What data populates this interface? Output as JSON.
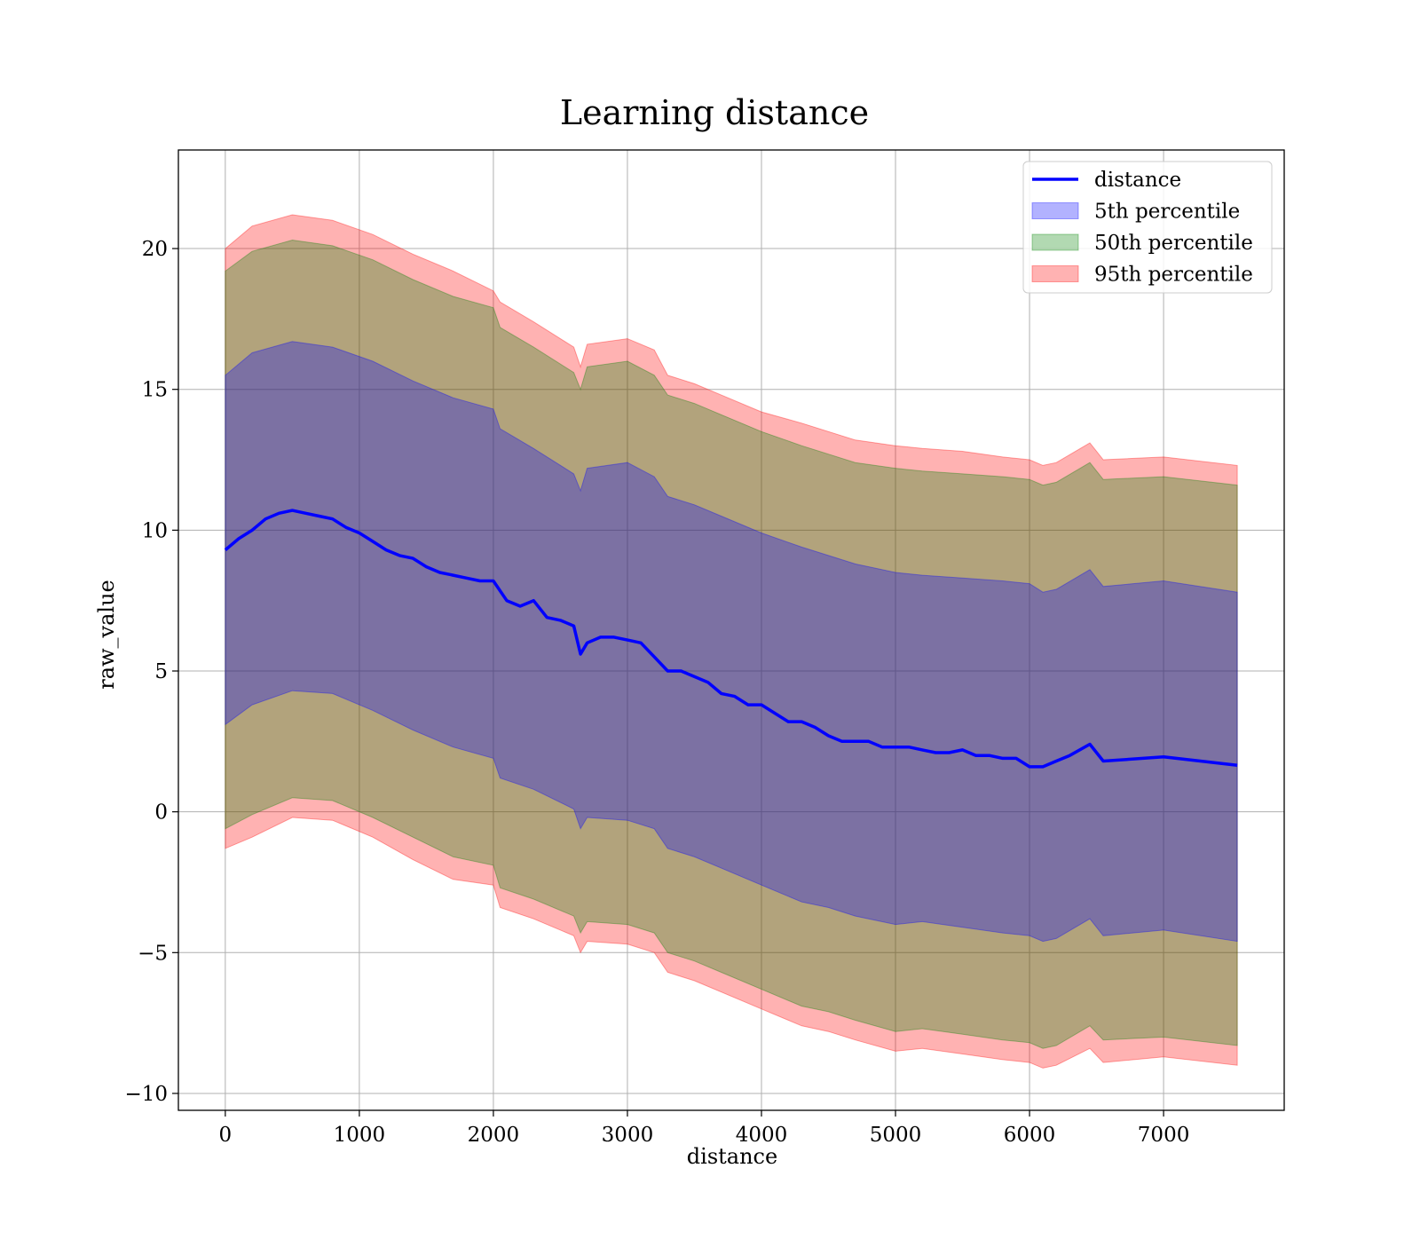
{
  "chart_data": {
    "type": "area",
    "title": "Learning distance",
    "xlabel": "distance",
    "ylabel": "raw_value",
    "xlim": [
      -350,
      7900
    ],
    "ylim": [
      -10.6,
      23.5
    ],
    "xticks": [
      0,
      1000,
      2000,
      3000,
      4000,
      5000,
      6000,
      7000
    ],
    "yticks": [
      -10,
      -5,
      0,
      5,
      10,
      15,
      20
    ],
    "xtick_labels": [
      "0",
      "1000",
      "2000",
      "3000",
      "4000",
      "5000",
      "6000",
      "7000"
    ],
    "ytick_labels": [
      "−10",
      "−5",
      "0",
      "5",
      "10",
      "15",
      "20"
    ],
    "grid": true,
    "legend_position": "top-right",
    "line": {
      "name": "distance",
      "color": "#0000ff",
      "x": [
        0,
        100,
        200,
        300,
        400,
        500,
        600,
        700,
        800,
        900,
        1000,
        1100,
        1200,
        1300,
        1400,
        1500,
        1600,
        1700,
        1800,
        1900,
        2000,
        2100,
        2200,
        2300,
        2400,
        2500,
        2600,
        2650,
        2700,
        2800,
        2900,
        3000,
        3100,
        3200,
        3300,
        3400,
        3500,
        3600,
        3700,
        3800,
        3900,
        4000,
        4100,
        4200,
        4300,
        4400,
        4500,
        4600,
        4700,
        4800,
        4900,
        5000,
        5100,
        5200,
        5300,
        5400,
        5500,
        5600,
        5700,
        5800,
        5900,
        6000,
        6100,
        6200,
        6300,
        6450,
        6550,
        7000,
        7550
      ],
      "y": [
        9.3,
        9.7,
        10.0,
        10.4,
        10.6,
        10.7,
        10.6,
        10.5,
        10.4,
        10.1,
        9.9,
        9.6,
        9.3,
        9.1,
        9.0,
        8.7,
        8.5,
        8.4,
        8.3,
        8.2,
        8.2,
        7.5,
        7.3,
        7.5,
        6.9,
        6.8,
        6.6,
        5.6,
        6.0,
        6.2,
        6.2,
        6.1,
        6.0,
        5.5,
        5.0,
        5.0,
        4.8,
        4.6,
        4.2,
        4.1,
        3.8,
        3.8,
        3.5,
        3.2,
        3.2,
        3.0,
        2.7,
        2.5,
        2.5,
        2.5,
        2.3,
        2.3,
        2.3,
        2.2,
        2.1,
        2.1,
        2.2,
        2.0,
        2.0,
        1.9,
        1.9,
        1.6,
        1.6,
        1.8,
        2.0,
        2.4,
        1.8,
        1.95,
        1.65
      ]
    },
    "bands": [
      {
        "name": "95th percentile",
        "color": "#ff0000",
        "opacity": 0.3,
        "x": [
          0,
          200,
          500,
          800,
          1100,
          1400,
          1700,
          2000,
          2050,
          2300,
          2600,
          2650,
          2700,
          3000,
          3200,
          3300,
          3500,
          3700,
          4000,
          4300,
          4500,
          4700,
          5000,
          5200,
          5500,
          5800,
          6000,
          6100,
          6200,
          6450,
          6550,
          7000,
          7550
        ],
        "upper": [
          20.0,
          20.8,
          21.2,
          21.0,
          20.5,
          19.8,
          19.2,
          18.5,
          18.1,
          17.4,
          16.5,
          15.8,
          16.6,
          16.8,
          16.4,
          15.5,
          15.2,
          14.8,
          14.2,
          13.8,
          13.5,
          13.2,
          13.0,
          12.9,
          12.8,
          12.6,
          12.5,
          12.3,
          12.4,
          13.1,
          12.5,
          12.6,
          12.3
        ],
        "lower": [
          -1.3,
          -0.9,
          -0.2,
          -0.3,
          -0.9,
          -1.7,
          -2.4,
          -2.6,
          -3.4,
          -3.8,
          -4.4,
          -5.0,
          -4.6,
          -4.7,
          -5.0,
          -5.7,
          -6.0,
          -6.4,
          -7.0,
          -7.6,
          -7.8,
          -8.1,
          -8.5,
          -8.4,
          -8.6,
          -8.8,
          -8.9,
          -9.1,
          -9.0,
          -8.4,
          -8.9,
          -8.7,
          -9.0
        ]
      },
      {
        "name": "50th percentile",
        "color": "#008000",
        "opacity": 0.3,
        "x": [
          0,
          200,
          500,
          800,
          1100,
          1400,
          1700,
          2000,
          2050,
          2300,
          2600,
          2650,
          2700,
          3000,
          3200,
          3300,
          3500,
          3700,
          4000,
          4300,
          4500,
          4700,
          5000,
          5200,
          5500,
          5800,
          6000,
          6100,
          6200,
          6450,
          6550,
          7000,
          7550
        ],
        "upper": [
          19.2,
          19.9,
          20.3,
          20.1,
          19.6,
          18.9,
          18.3,
          17.9,
          17.2,
          16.5,
          15.6,
          15.0,
          15.8,
          16.0,
          15.5,
          14.8,
          14.5,
          14.1,
          13.5,
          13.0,
          12.7,
          12.4,
          12.2,
          12.1,
          12.0,
          11.9,
          11.8,
          11.6,
          11.7,
          12.4,
          11.8,
          11.9,
          11.6
        ],
        "lower": [
          -0.6,
          -0.1,
          0.5,
          0.4,
          -0.2,
          -0.9,
          -1.6,
          -1.9,
          -2.7,
          -3.1,
          -3.7,
          -4.3,
          -3.9,
          -4.0,
          -4.3,
          -5.0,
          -5.3,
          -5.7,
          -6.3,
          -6.9,
          -7.1,
          -7.4,
          -7.8,
          -7.7,
          -7.9,
          -8.1,
          -8.2,
          -8.4,
          -8.3,
          -7.6,
          -8.1,
          -8.0,
          -8.3
        ]
      },
      {
        "name": "5th percentile",
        "color": "#0000ff",
        "opacity": 0.3,
        "x": [
          0,
          200,
          500,
          800,
          1100,
          1400,
          1700,
          2000,
          2050,
          2300,
          2600,
          2650,
          2700,
          3000,
          3200,
          3300,
          3500,
          3700,
          4000,
          4300,
          4500,
          4700,
          5000,
          5200,
          5500,
          5800,
          6000,
          6100,
          6200,
          6450,
          6550,
          7000,
          7550
        ],
        "upper": [
          15.5,
          16.3,
          16.7,
          16.5,
          16.0,
          15.3,
          14.7,
          14.3,
          13.6,
          12.9,
          12.0,
          11.4,
          12.2,
          12.4,
          11.9,
          11.2,
          10.9,
          10.5,
          9.9,
          9.4,
          9.1,
          8.8,
          8.5,
          8.4,
          8.3,
          8.2,
          8.1,
          7.8,
          7.9,
          8.6,
          8.0,
          8.2,
          7.8
        ],
        "lower": [
          3.1,
          3.8,
          4.3,
          4.2,
          3.6,
          2.9,
          2.3,
          1.9,
          1.2,
          0.8,
          0.1,
          -0.6,
          -0.2,
          -0.3,
          -0.6,
          -1.3,
          -1.6,
          -2.0,
          -2.6,
          -3.2,
          -3.4,
          -3.7,
          -4.0,
          -3.9,
          -4.1,
          -4.3,
          -4.4,
          -4.6,
          -4.5,
          -3.8,
          -4.4,
          -4.2,
          -4.6
        ]
      }
    ],
    "legend": [
      {
        "label": "distance",
        "kind": "line",
        "color": "#0000ff"
      },
      {
        "label": "5th percentile",
        "kind": "patch",
        "color": "#0000ff"
      },
      {
        "label": "50th percentile",
        "kind": "patch",
        "color": "#008000"
      },
      {
        "label": "95th percentile",
        "kind": "patch",
        "color": "#ff0000"
      }
    ]
  }
}
